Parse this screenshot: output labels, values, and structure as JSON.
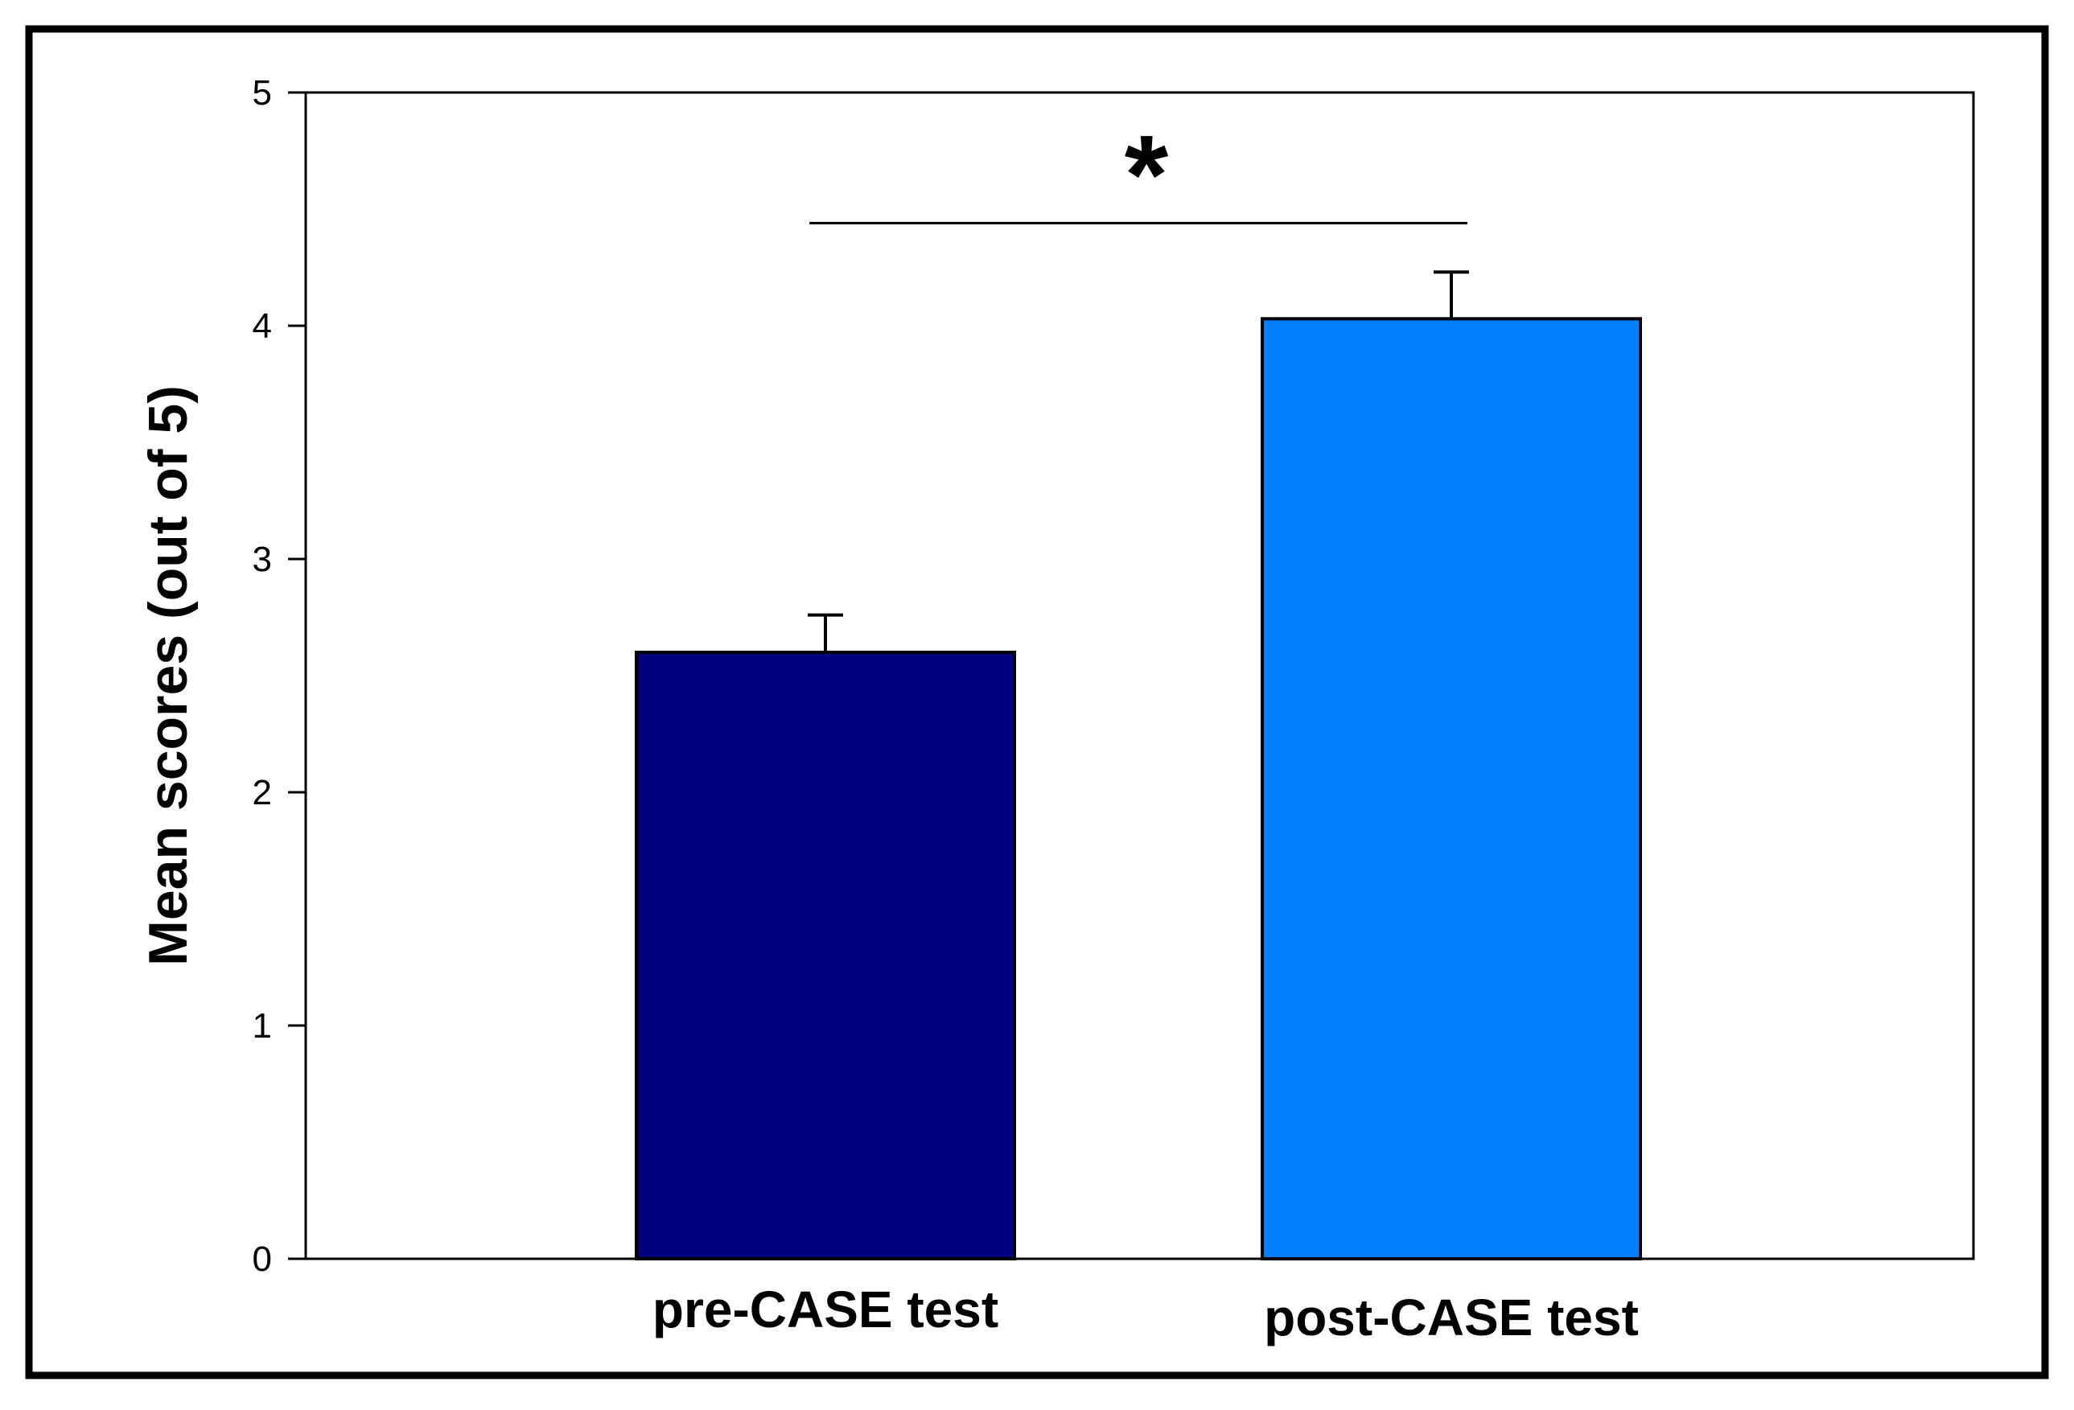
{
  "chart_data": {
    "type": "bar",
    "categories": [
      "pre-CASE test",
      "post-CASE test"
    ],
    "values": [
      2.6,
      4.03
    ],
    "error_bars": [
      0.16,
      0.2
    ],
    "colors": [
      "#000080",
      "#0080FF"
    ],
    "ylabel": "Mean scores (out of 5)",
    "xlabel": "",
    "ylim": [
      0,
      5
    ],
    "yticks": [
      0,
      1,
      2,
      3,
      4,
      5
    ],
    "grid": false,
    "annotations": [
      {
        "type": "significance",
        "label": "*",
        "between": [
          0,
          1
        ],
        "y": 4.44
      }
    ]
  }
}
